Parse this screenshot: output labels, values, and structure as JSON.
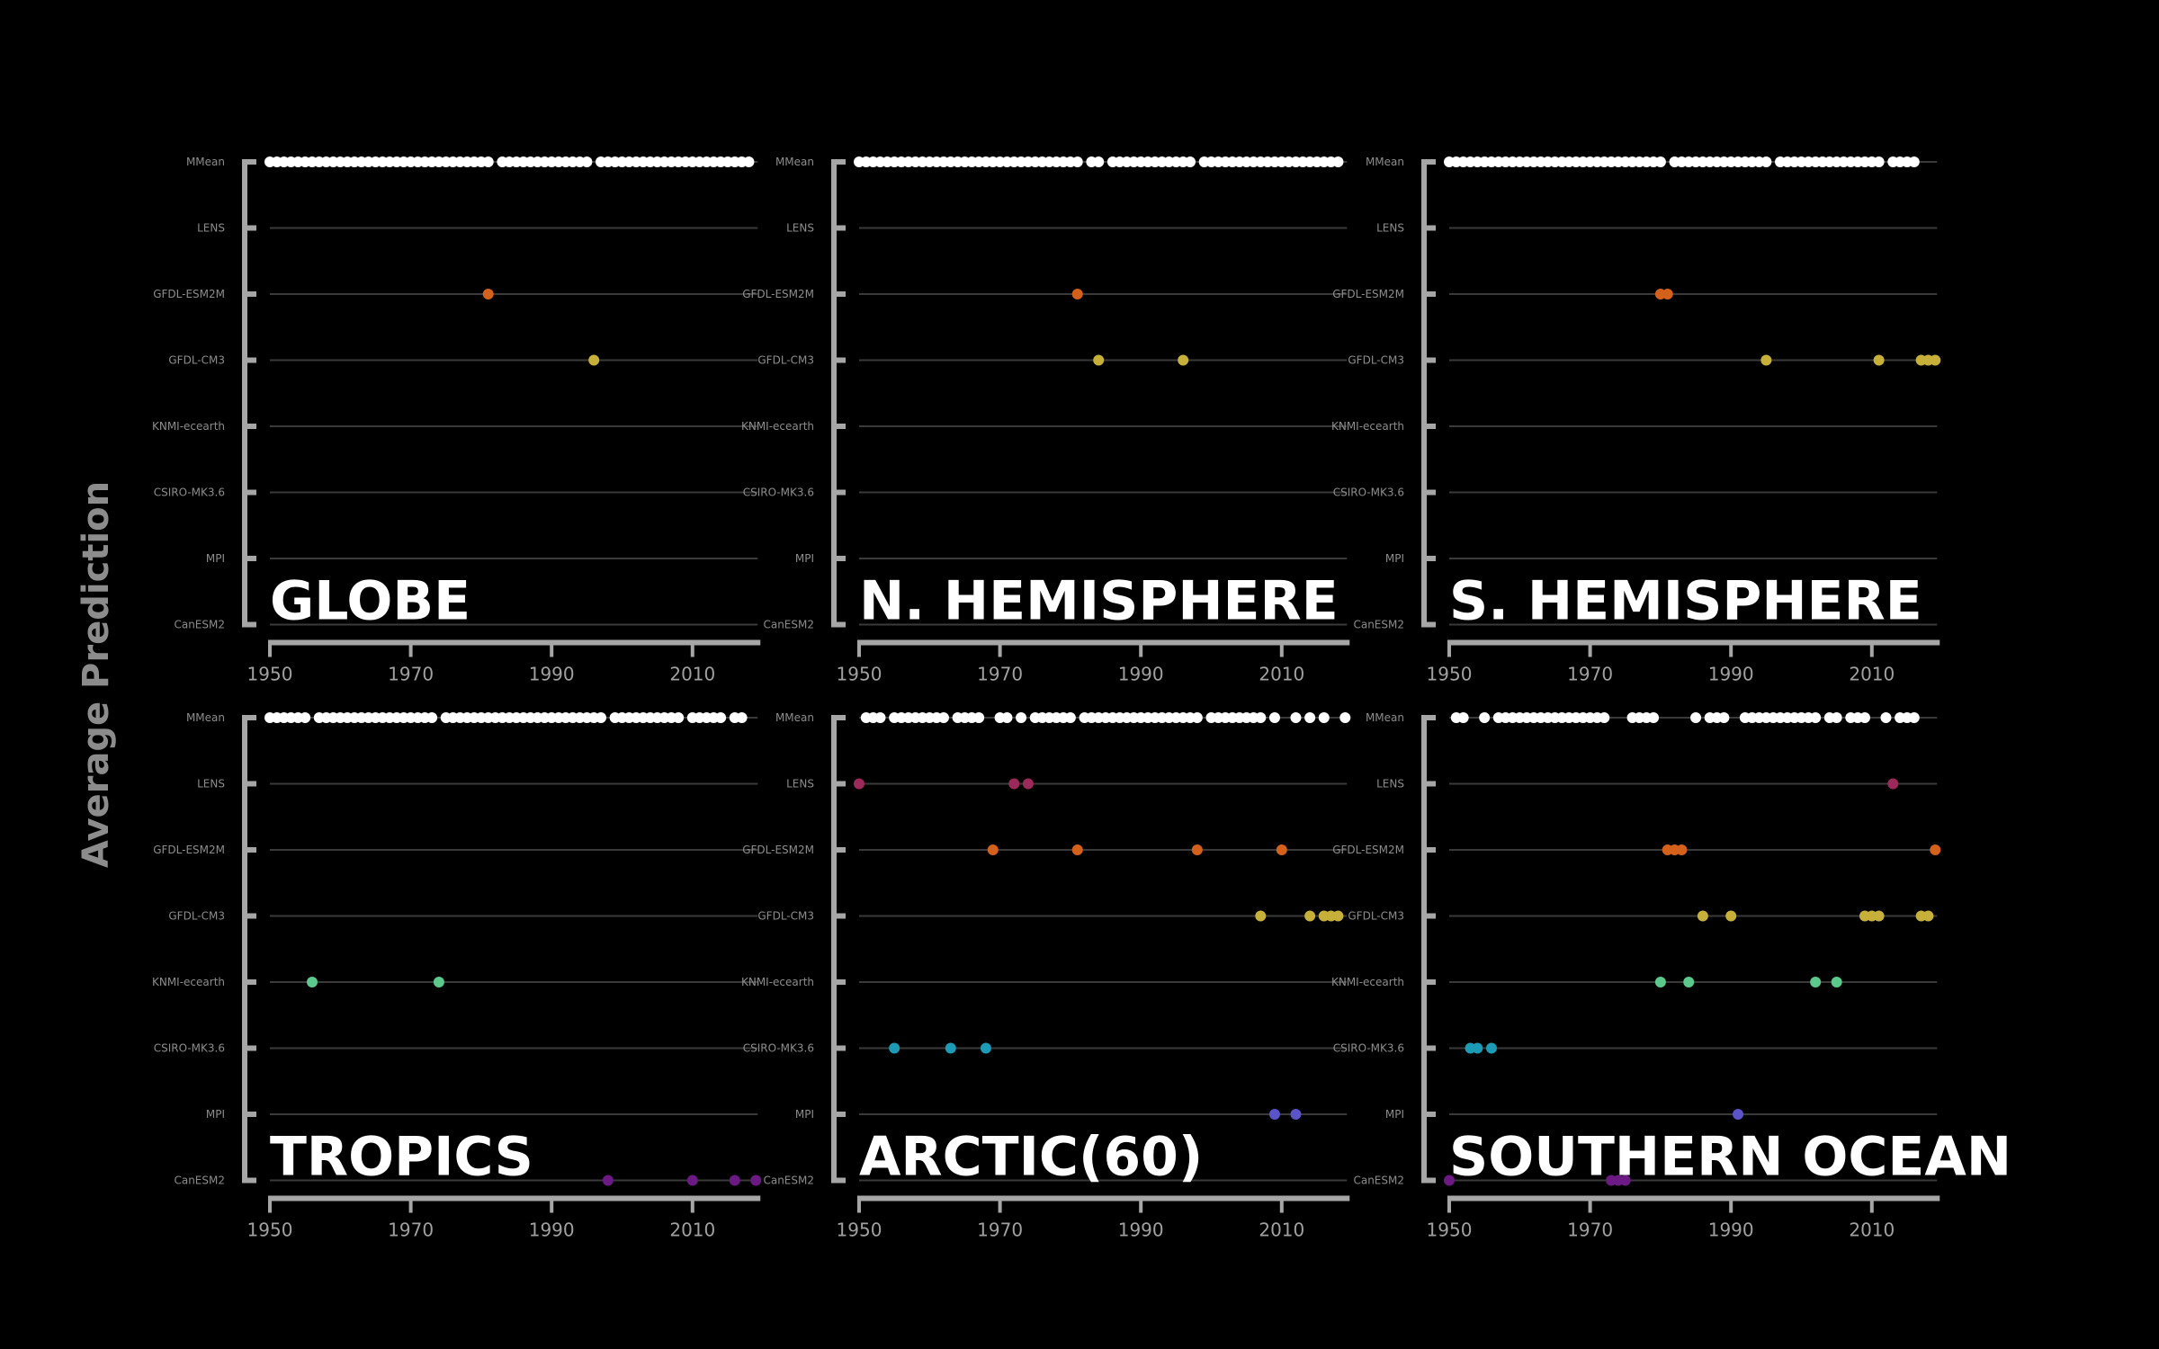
{
  "figure": {
    "ylabel": "Average Prediction"
  },
  "colors": {
    "background": "#000000",
    "axis": "#a6a6a6",
    "gridline": "#3a3a3a",
    "MMean": "#ffffff",
    "LENS": "#9b2a5a",
    "GFDL-ESM2M": "#d3611b",
    "GFDL-CM3": "#c7b03a",
    "KNMI-ecearth": "#5cc98c",
    "CSIRO-MK3.6": "#1b9bb5",
    "MPI": "#5a54c8",
    "CanESM2": "#6a1a82"
  },
  "chart_data": [
    {
      "type": "scatter",
      "title": "GLOBE",
      "xlim": [
        1950,
        2019
      ],
      "xticks": [
        "1950",
        "1970",
        "1990",
        "2010"
      ],
      "categories": [
        "MMean",
        "LENS",
        "GFDL-ESM2M",
        "GFDL-CM3",
        "KNMI-ecearth",
        "CSIRO-MK3.6",
        "MPI",
        "CanESM2"
      ],
      "grid": true,
      "series": [
        {
          "name": "MMean",
          "values": [
            1950,
            1951,
            1952,
            1953,
            1954,
            1955,
            1956,
            1957,
            1958,
            1959,
            1960,
            1961,
            1962,
            1963,
            1964,
            1965,
            1966,
            1967,
            1968,
            1969,
            1970,
            1971,
            1972,
            1973,
            1974,
            1975,
            1976,
            1977,
            1978,
            1979,
            1980,
            1981,
            1983,
            1984,
            1985,
            1986,
            1987,
            1988,
            1989,
            1990,
            1991,
            1992,
            1993,
            1994,
            1995,
            1997,
            1998,
            1999,
            2000,
            2001,
            2002,
            2003,
            2004,
            2005,
            2006,
            2007,
            2008,
            2009,
            2010,
            2011,
            2012,
            2013,
            2014,
            2015,
            2016,
            2017,
            2018
          ]
        },
        {
          "name": "LENS",
          "values": []
        },
        {
          "name": "GFDL-ESM2M",
          "values": [
            1981
          ]
        },
        {
          "name": "GFDL-CM3",
          "values": [
            1996
          ]
        },
        {
          "name": "KNMI-ecearth",
          "values": []
        },
        {
          "name": "CSIRO-MK3.6",
          "values": []
        },
        {
          "name": "MPI",
          "values": []
        },
        {
          "name": "CanESM2",
          "values": []
        }
      ]
    },
    {
      "type": "scatter",
      "title": "N. HEMISPHERE",
      "xlim": [
        1950,
        2019
      ],
      "xticks": [
        "1950",
        "1970",
        "1990",
        "2010"
      ],
      "categories": [
        "MMean",
        "LENS",
        "GFDL-ESM2M",
        "GFDL-CM3",
        "KNMI-ecearth",
        "CSIRO-MK3.6",
        "MPI",
        "CanESM2"
      ],
      "grid": true,
      "series": [
        {
          "name": "MMean",
          "values": [
            1950,
            1951,
            1952,
            1953,
            1954,
            1955,
            1956,
            1957,
            1958,
            1959,
            1960,
            1961,
            1962,
            1963,
            1964,
            1965,
            1966,
            1967,
            1968,
            1969,
            1970,
            1971,
            1972,
            1973,
            1974,
            1975,
            1976,
            1977,
            1978,
            1979,
            1980,
            1981,
            1983,
            1984,
            1986,
            1987,
            1988,
            1989,
            1990,
            1991,
            1992,
            1993,
            1994,
            1995,
            1996,
            1997,
            1999,
            2000,
            2001,
            2002,
            2003,
            2004,
            2005,
            2006,
            2007,
            2008,
            2009,
            2010,
            2011,
            2012,
            2013,
            2014,
            2015,
            2016,
            2017,
            2018
          ]
        },
        {
          "name": "LENS",
          "values": []
        },
        {
          "name": "GFDL-ESM2M",
          "values": [
            1981
          ]
        },
        {
          "name": "GFDL-CM3",
          "values": [
            1984,
            1996
          ]
        },
        {
          "name": "KNMI-ecearth",
          "values": []
        },
        {
          "name": "CSIRO-MK3.6",
          "values": []
        },
        {
          "name": "MPI",
          "values": []
        },
        {
          "name": "CanESM2",
          "values": []
        }
      ]
    },
    {
      "type": "scatter",
      "title": "S. HEMISPHERE",
      "xlim": [
        1950,
        2019
      ],
      "xticks": [
        "1950",
        "1970",
        "1990",
        "2010"
      ],
      "categories": [
        "MMean",
        "LENS",
        "GFDL-ESM2M",
        "GFDL-CM3",
        "KNMI-ecearth",
        "CSIRO-MK3.6",
        "MPI",
        "CanESM2"
      ],
      "grid": true,
      "series": [
        {
          "name": "MMean",
          "values": [
            1950,
            1951,
            1952,
            1953,
            1954,
            1955,
            1956,
            1957,
            1958,
            1959,
            1960,
            1961,
            1962,
            1963,
            1964,
            1965,
            1966,
            1967,
            1968,
            1969,
            1970,
            1971,
            1972,
            1973,
            1974,
            1975,
            1976,
            1977,
            1978,
            1979,
            1980,
            1982,
            1983,
            1984,
            1985,
            1986,
            1987,
            1988,
            1989,
            1990,
            1991,
            1992,
            1993,
            1994,
            1995,
            1997,
            1998,
            1999,
            2000,
            2001,
            2002,
            2003,
            2004,
            2005,
            2006,
            2007,
            2008,
            2009,
            2010,
            2011,
            2013,
            2014,
            2015,
            2016
          ]
        },
        {
          "name": "LENS",
          "values": []
        },
        {
          "name": "GFDL-ESM2M",
          "values": [
            1980,
            1981
          ]
        },
        {
          "name": "GFDL-CM3",
          "values": [
            1995,
            2011,
            2017,
            2018,
            2019
          ]
        },
        {
          "name": "KNMI-ecearth",
          "values": []
        },
        {
          "name": "CSIRO-MK3.6",
          "values": []
        },
        {
          "name": "MPI",
          "values": []
        },
        {
          "name": "CanESM2",
          "values": []
        }
      ]
    },
    {
      "type": "scatter",
      "title": "TROPICS",
      "xlim": [
        1950,
        2019
      ],
      "xticks": [
        "1950",
        "1970",
        "1990",
        "2010"
      ],
      "categories": [
        "MMean",
        "LENS",
        "GFDL-ESM2M",
        "GFDL-CM3",
        "KNMI-ecearth",
        "CSIRO-MK3.6",
        "MPI",
        "CanESM2"
      ],
      "grid": true,
      "series": [
        {
          "name": "MMean",
          "values": [
            1950,
            1951,
            1952,
            1953,
            1954,
            1955,
            1957,
            1958,
            1959,
            1960,
            1961,
            1962,
            1963,
            1964,
            1965,
            1966,
            1967,
            1968,
            1969,
            1970,
            1971,
            1972,
            1973,
            1975,
            1976,
            1977,
            1978,
            1979,
            1980,
            1981,
            1982,
            1983,
            1984,
            1985,
            1986,
            1987,
            1988,
            1989,
            1990,
            1991,
            1992,
            1993,
            1994,
            1995,
            1996,
            1997,
            1999,
            2000,
            2001,
            2002,
            2003,
            2004,
            2005,
            2006,
            2007,
            2008,
            2010,
            2011,
            2012,
            2013,
            2014,
            2016,
            2017
          ]
        },
        {
          "name": "LENS",
          "values": []
        },
        {
          "name": "GFDL-ESM2M",
          "values": []
        },
        {
          "name": "GFDL-CM3",
          "values": []
        },
        {
          "name": "KNMI-ecearth",
          "values": [
            1956,
            1974
          ]
        },
        {
          "name": "CSIRO-MK3.6",
          "values": []
        },
        {
          "name": "MPI",
          "values": []
        },
        {
          "name": "CanESM2",
          "values": [
            1998,
            2010,
            2016,
            2019
          ]
        }
      ]
    },
    {
      "type": "scatter",
      "title": "ARCTIC(60)",
      "xlim": [
        1950,
        2019
      ],
      "xticks": [
        "1950",
        "1970",
        "1990",
        "2010"
      ],
      "categories": [
        "MMean",
        "LENS",
        "GFDL-ESM2M",
        "GFDL-CM3",
        "KNMI-ecearth",
        "CSIRO-MK3.6",
        "MPI",
        "CanESM2"
      ],
      "grid": true,
      "series": [
        {
          "name": "MMean",
          "values": [
            1951,
            1952,
            1953,
            1955,
            1956,
            1957,
            1958,
            1959,
            1960,
            1961,
            1962,
            1964,
            1965,
            1966,
            1967,
            1970,
            1971,
            1973,
            1975,
            1976,
            1977,
            1978,
            1979,
            1980,
            1982,
            1983,
            1984,
            1985,
            1986,
            1987,
            1988,
            1989,
            1990,
            1991,
            1992,
            1993,
            1994,
            1995,
            1996,
            1997,
            1998,
            2000,
            2001,
            2002,
            2003,
            2004,
            2005,
            2006,
            2007,
            2009,
            2012,
            2014,
            2016,
            2019
          ]
        },
        {
          "name": "LENS",
          "values": [
            1950,
            1972,
            1974
          ]
        },
        {
          "name": "GFDL-ESM2M",
          "values": [
            1969,
            1981,
            1998,
            2010
          ]
        },
        {
          "name": "GFDL-CM3",
          "values": [
            2007,
            2014,
            2016,
            2017,
            2018
          ]
        },
        {
          "name": "KNMI-ecearth",
          "values": []
        },
        {
          "name": "CSIRO-MK3.6",
          "values": [
            1955,
            1963,
            1968
          ]
        },
        {
          "name": "MPI",
          "values": [
            2009,
            2012
          ]
        },
        {
          "name": "CanESM2",
          "values": []
        }
      ]
    },
    {
      "type": "scatter",
      "title": "SOUTHERN OCEAN",
      "xlim": [
        1950,
        2019
      ],
      "xticks": [
        "1950",
        "1970",
        "1990",
        "2010"
      ],
      "categories": [
        "MMean",
        "LENS",
        "GFDL-ESM2M",
        "GFDL-CM3",
        "KNMI-ecearth",
        "CSIRO-MK3.6",
        "MPI",
        "CanESM2"
      ],
      "grid": true,
      "series": [
        {
          "name": "MMean",
          "values": [
            1951,
            1952,
            1955,
            1957,
            1958,
            1959,
            1960,
            1961,
            1962,
            1963,
            1964,
            1965,
            1966,
            1967,
            1968,
            1969,
            1970,
            1971,
            1972,
            1976,
            1977,
            1978,
            1979,
            1985,
            1987,
            1988,
            1989,
            1992,
            1993,
            1994,
            1995,
            1996,
            1997,
            1998,
            1999,
            2000,
            2001,
            2002,
            2004,
            2005,
            2007,
            2008,
            2009,
            2012,
            2014,
            2015,
            2016
          ]
        },
        {
          "name": "LENS",
          "values": [
            2013
          ]
        },
        {
          "name": "GFDL-ESM2M",
          "values": [
            1981,
            1982,
            1983,
            2019
          ]
        },
        {
          "name": "GFDL-CM3",
          "values": [
            1986,
            1990,
            2009,
            2010,
            2011,
            2017,
            2018
          ]
        },
        {
          "name": "KNMI-ecearth",
          "values": [
            1980,
            1984,
            2002,
            2005
          ]
        },
        {
          "name": "CSIRO-MK3.6",
          "values": [
            1953,
            1954,
            1956
          ]
        },
        {
          "name": "MPI",
          "values": [
            1991
          ]
        },
        {
          "name": "CanESM2",
          "values": [
            1950,
            1973,
            1974,
            1975
          ]
        }
      ]
    }
  ]
}
